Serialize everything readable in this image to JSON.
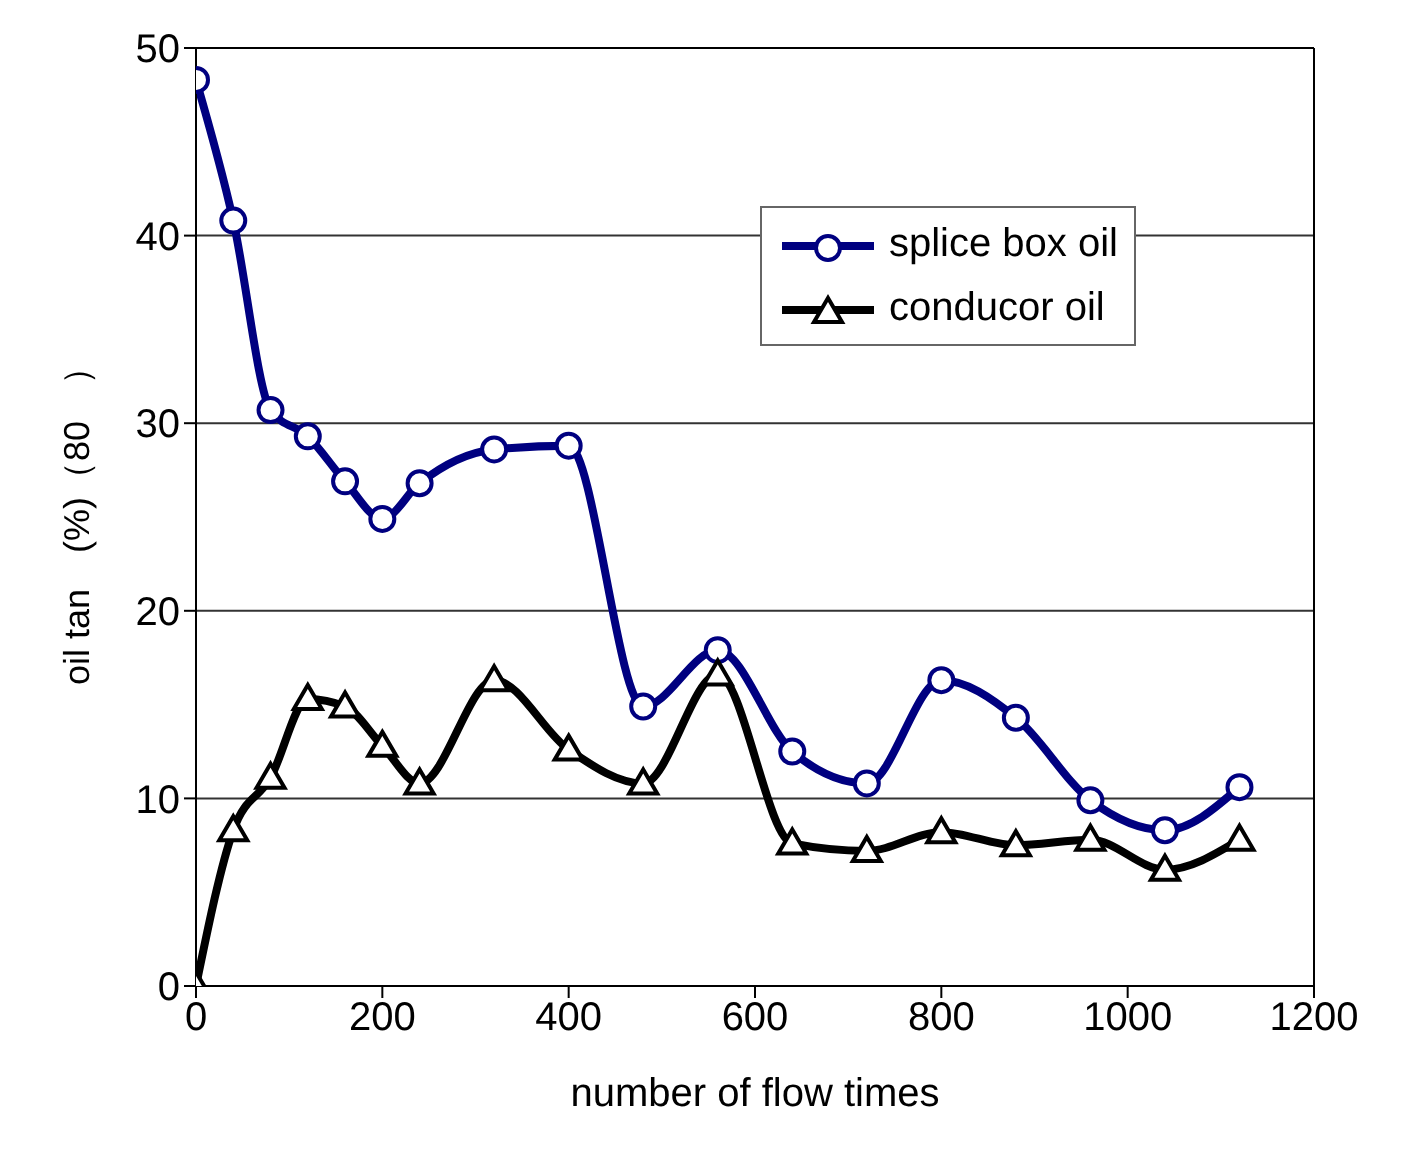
{
  "chart_data": {
    "type": "line",
    "xlabel": "number of flow times",
    "ylabel": "oil tan　(%)（80　）",
    "x": [
      0,
      40,
      80,
      120,
      160,
      200,
      240,
      320,
      400,
      480,
      560,
      640,
      720,
      800,
      880,
      960,
      1040,
      1120
    ],
    "series": [
      {
        "name": "splice box oil",
        "color": "#000080",
        "marker": "circle",
        "values": [
          48.3,
          40.8,
          30.7,
          29.3,
          26.9,
          24.9,
          26.8,
          28.6,
          28.8,
          14.9,
          17.9,
          12.5,
          10.8,
          16.3,
          14.3,
          9.9,
          8.3,
          10.6
        ]
      },
      {
        "name": "conducor oil",
        "color": "#000000",
        "marker": "triangle",
        "values": [
          0,
          8.3,
          11.1,
          15.3,
          14.9,
          12.8,
          10.8,
          16.3,
          12.6,
          10.8,
          16.6,
          7.6,
          7.2,
          8.2,
          7.5,
          7.8,
          6.2,
          7.8
        ]
      }
    ],
    "xlim": [
      0,
      1200
    ],
    "xticks": [
      0,
      200,
      400,
      600,
      800,
      1000,
      1200
    ],
    "ylim": [
      0,
      50
    ],
    "yticks": [
      0,
      10,
      20,
      30,
      40,
      50
    ],
    "grid": "y",
    "legend": "top right",
    "line_style": "solid"
  }
}
